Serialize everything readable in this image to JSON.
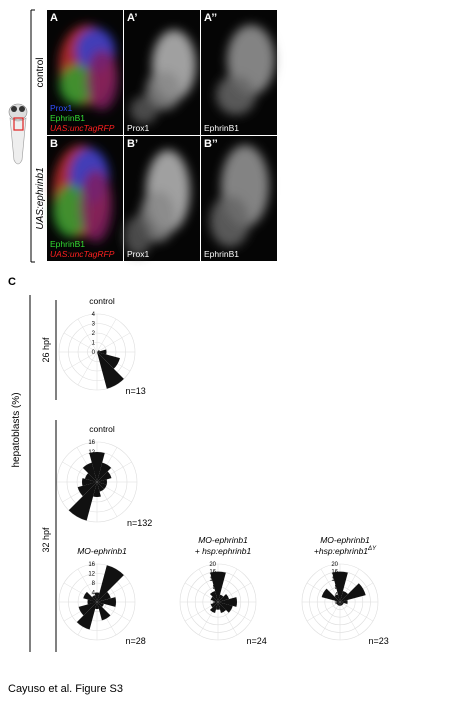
{
  "figure": {
    "caption": "Cayuso et al. Figure S3"
  },
  "panel_ab": {
    "rows": [
      {
        "label": "control",
        "panels": [
          {
            "letter": "A",
            "labels": [
              {
                "text": "Prox1",
                "color": "#3050ff"
              },
              {
                "text": "EphrinB1",
                "color": "#33dd33"
              },
              {
                "text": "UAS:uncTagRFP",
                "color": "#ff2020"
              }
            ]
          },
          {
            "letter": "A’",
            "labels": [
              {
                "text": "Prox1",
                "color": "#ffffff"
              }
            ]
          },
          {
            "letter": "A’’",
            "labels": [
              {
                "text": "EphrinB1",
                "color": "#ffffff"
              }
            ]
          }
        ]
      },
      {
        "label": "UAS:ephrinb1",
        "panels": [
          {
            "letter": "B",
            "labels": [
              {
                "text": "EphrinB1",
                "color": "#33dd33"
              },
              {
                "text": "UAS:uncTagRFP",
                "color": "#ff2020"
              }
            ]
          },
          {
            "letter": "B’",
            "labels": [
              {
                "text": "Prox1",
                "color": "#ffffff"
              }
            ]
          },
          {
            "letter": "B’’",
            "labels": [
              {
                "text": "EphrinB1",
                "color": "#ffffff"
              }
            ]
          }
        ]
      }
    ]
  },
  "panel_c": {
    "letter": "C",
    "y_label": "hepatoblasts (%)",
    "groups": [
      {
        "label": "26 hpf"
      },
      {
        "label": "32 hpf"
      }
    ],
    "plots": [
      {
        "type": "rose",
        "title": [
          "control"
        ],
        "n_label": "n=13",
        "rlim": [
          0,
          4
        ],
        "rticks": [
          0,
          1,
          2,
          3,
          4
        ],
        "angles": [
          0,
          30,
          60,
          90,
          120,
          150,
          180,
          210,
          240,
          270,
          300,
          330
        ],
        "values": [
          1,
          0.3,
          0,
          0,
          0,
          0,
          0,
          0,
          0,
          0,
          4,
          2.5
        ],
        "color": "#111111"
      },
      {
        "type": "rose",
        "title": [
          "control"
        ],
        "n_label": "n=132",
        "rlim": [
          0,
          16
        ],
        "rticks": [
          0,
          4,
          8,
          12,
          16
        ],
        "angles": [
          0,
          30,
          60,
          90,
          120,
          150,
          180,
          210,
          240,
          270,
          300,
          330
        ],
        "values": [
          4,
          6,
          8,
          12,
          8,
          5,
          6,
          8,
          16,
          6,
          4,
          4
        ],
        "color": "#111111"
      },
      {
        "type": "rose",
        "title": [
          "MO-ephrinb1"
        ],
        "n_label": "n=28",
        "rlim": [
          0,
          16
        ],
        "rticks": [
          0,
          4,
          8,
          12,
          16
        ],
        "angles": [
          0,
          30,
          60,
          90,
          120,
          150,
          180,
          210,
          240,
          270,
          300,
          330
        ],
        "values": [
          8,
          6,
          16,
          4,
          3,
          6,
          4,
          8,
          12,
          3,
          8,
          3
        ],
        "color": "#111111"
      },
      {
        "type": "rose",
        "title": [
          "MO-ephrinb1",
          "+ hsp:ephrinb1"
        ],
        "n_label": "n=24",
        "rlim": [
          0,
          20
        ],
        "rticks": [
          0,
          4,
          8,
          12,
          16,
          20
        ],
        "angles": [
          0,
          30,
          60,
          90,
          120,
          150,
          180,
          210,
          240,
          270,
          300,
          330
        ],
        "values": [
          10,
          6,
          4,
          16,
          6,
          4,
          2,
          4,
          6,
          4,
          6,
          8
        ],
        "color": "#111111"
      },
      {
        "type": "rose",
        "title": [
          "MO-ephrinb1",
          "+hsp:ephrinb1"
        ],
        "title_sup": "ΔY",
        "n_label": "n=23",
        "rlim": [
          0,
          20
        ],
        "rticks": [
          0,
          4,
          8,
          12,
          16,
          20
        ],
        "angles": [
          0,
          30,
          60,
          90,
          120,
          150,
          180,
          210,
          240,
          270,
          300,
          330
        ],
        "values": [
          4,
          14,
          6,
          16,
          4,
          10,
          2,
          2,
          2,
          2,
          2,
          2
        ],
        "color": "#111111"
      }
    ]
  }
}
